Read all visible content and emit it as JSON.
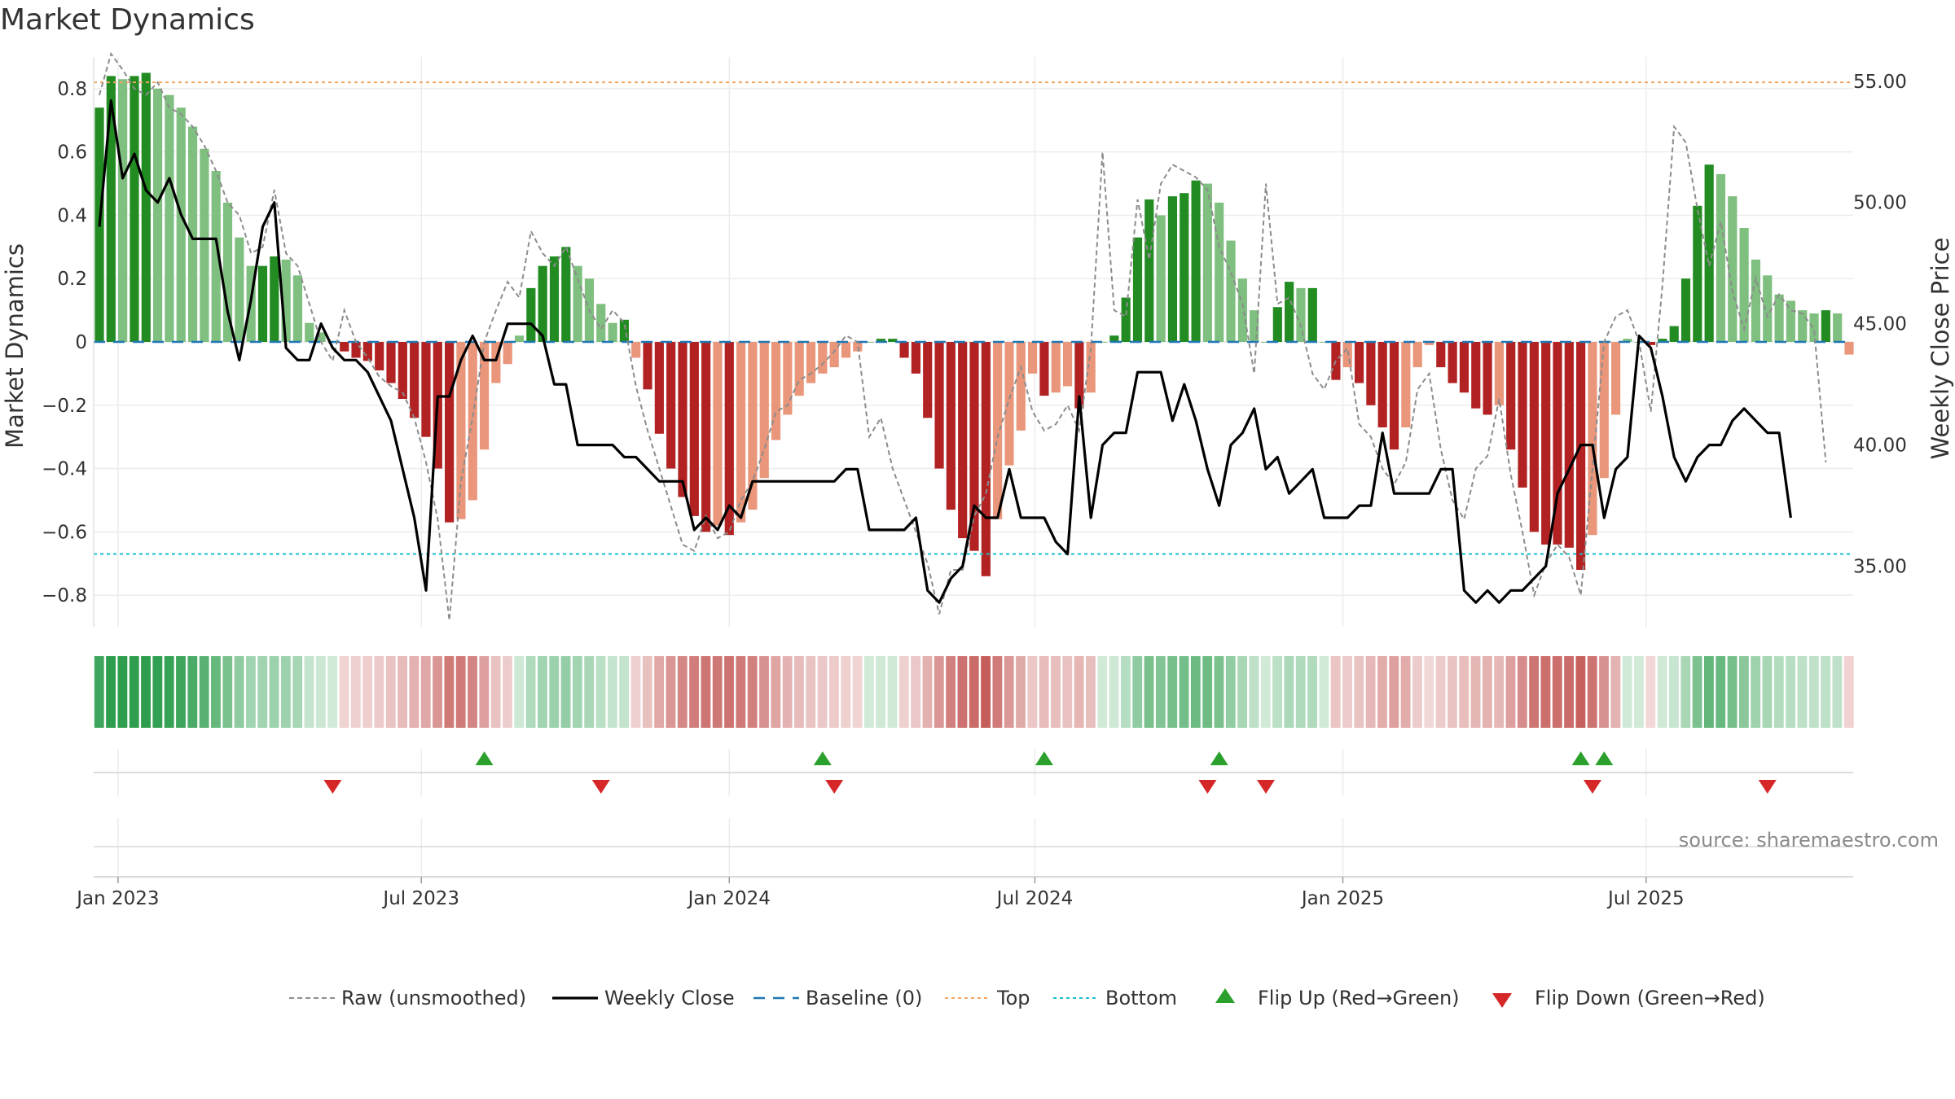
{
  "title": "Market Dynamics",
  "source": "source: sharemaestro.com",
  "colors": {
    "green_strong": "#228b22",
    "green_light": "#7fbf7f",
    "red_strong": "#b22222",
    "red_light": "#e9967a",
    "raw_line": "#8c8c8c",
    "close_line": "#000000",
    "baseline": "#1f77b4",
    "top_line": "#f4a460",
    "bottom_line": "#17becf",
    "flip_up": "#2ca02c",
    "flip_down": "#d62728",
    "grid": "#ececec"
  },
  "chart_data": {
    "type": "bar+line",
    "title": "Market Dynamics",
    "ylabel_left": "Market Dynamics",
    "ylabel_right": "Weekly Close Price",
    "ylim_left": [
      -0.9,
      0.9
    ],
    "ylim_right": [
      32.5,
      56
    ],
    "yticks_left": [
      {
        "v": 0.8,
        "label": "0.8"
      },
      {
        "v": 0.6,
        "label": "0.6"
      },
      {
        "v": 0.4,
        "label": "0.4"
      },
      {
        "v": 0.2,
        "label": "0.2"
      },
      {
        "v": 0,
        "label": "0"
      },
      {
        "v": -0.2,
        "label": "−0.2"
      },
      {
        "v": -0.4,
        "label": "−0.4"
      },
      {
        "v": -0.6,
        "label": "−0.6"
      },
      {
        "v": -0.8,
        "label": "−0.8"
      }
    ],
    "yticks_right": [
      {
        "v": 55,
        "label": "55.00"
      },
      {
        "v": 50,
        "label": "50.00"
      },
      {
        "v": 45,
        "label": "45.00"
      },
      {
        "v": 40,
        "label": "40.00"
      },
      {
        "v": 35,
        "label": "35.00"
      }
    ],
    "xticks": [
      {
        "week": 1.6,
        "label": "Jan 2023"
      },
      {
        "week": 27.6,
        "label": "Jul 2023"
      },
      {
        "week": 54.0,
        "label": "Jan 2024"
      },
      {
        "week": 80.2,
        "label": "Jul 2024"
      },
      {
        "week": 106.6,
        "label": "Jan 2025"
      },
      {
        "week": 132.6,
        "label": "Jul 2025"
      }
    ],
    "top_threshold": 0.82,
    "bottom_threshold": -0.67,
    "baseline": 0,
    "histogram_values": [
      0.74,
      0.84,
      0.83,
      0.84,
      0.85,
      0.8,
      0.78,
      0.74,
      0.68,
      0.61,
      0.54,
      0.44,
      0.33,
      0.24,
      0.24,
      0.27,
      0.26,
      0.21,
      0.06,
      0.03,
      0.0,
      -0.03,
      -0.05,
      -0.06,
      -0.09,
      -0.13,
      -0.18,
      -0.24,
      -0.3,
      -0.4,
      -0.57,
      -0.56,
      -0.5,
      -0.34,
      -0.13,
      -0.07,
      0.02,
      0.17,
      0.24,
      0.27,
      0.3,
      0.24,
      0.2,
      0.12,
      0.06,
      0.07,
      -0.05,
      -0.15,
      -0.29,
      -0.4,
      -0.49,
      -0.55,
      -0.6,
      -0.58,
      -0.61,
      -0.57,
      -0.53,
      -0.43,
      -0.31,
      -0.23,
      -0.17,
      -0.13,
      -0.1,
      -0.08,
      -0.05,
      -0.03,
      0.0,
      0.01,
      0.01,
      -0.05,
      -0.1,
      -0.24,
      -0.4,
      -0.53,
      -0.62,
      -0.66,
      -0.74,
      -0.56,
      -0.39,
      -0.28,
      -0.1,
      -0.17,
      -0.16,
      -0.14,
      -0.21,
      -0.16,
      0.0,
      0.02,
      0.14,
      0.33,
      0.45,
      0.4,
      0.46,
      0.47,
      0.51,
      0.5,
      0.44,
      0.32,
      0.2,
      0.1,
      0.0,
      0.11,
      0.19,
      0.17,
      0.17,
      0.0,
      -0.12,
      -0.08,
      -0.13,
      -0.2,
      -0.27,
      -0.34,
      -0.27,
      -0.08,
      -0.01,
      -0.08,
      -0.13,
      -0.16,
      -0.21,
      -0.23,
      -0.2,
      -0.34,
      -0.46,
      -0.6,
      -0.64,
      -0.64,
      -0.65,
      -0.72,
      -0.61,
      -0.43,
      -0.23,
      0.01,
      0.0,
      -0.01,
      0.01,
      0.05,
      0.2,
      0.43,
      0.56,
      0.53,
      0.46,
      0.36,
      0.26,
      0.21,
      0.15,
      0.13,
      0.1,
      0.09,
      0.1,
      0.09,
      -0.04
    ],
    "raw_values": [
      0.78,
      0.91,
      0.86,
      0.8,
      0.78,
      0.82,
      0.74,
      0.72,
      0.68,
      0.62,
      0.54,
      0.44,
      0.4,
      0.28,
      0.3,
      0.48,
      0.28,
      0.24,
      0.12,
      0.0,
      -0.06,
      0.1,
      0.0,
      -0.05,
      -0.11,
      -0.14,
      -0.16,
      -0.24,
      -0.38,
      -0.56,
      -0.88,
      -0.44,
      -0.24,
      0.0,
      0.1,
      0.19,
      0.14,
      0.35,
      0.28,
      0.24,
      0.3,
      0.2,
      0.1,
      0.04,
      0.1,
      0.06,
      -0.14,
      -0.28,
      -0.4,
      -0.52,
      -0.64,
      -0.66,
      -0.55,
      -0.62,
      -0.6,
      -0.5,
      -0.44,
      -0.34,
      -0.22,
      -0.2,
      -0.12,
      -0.1,
      -0.07,
      -0.03,
      0.02,
      0.0,
      -0.3,
      -0.24,
      -0.4,
      -0.5,
      -0.6,
      -0.7,
      -0.86,
      -0.72,
      -0.72,
      -0.55,
      -0.48,
      -0.3,
      -0.18,
      -0.08,
      -0.22,
      -0.28,
      -0.26,
      -0.2,
      -0.28,
      -0.02,
      0.6,
      0.1,
      0.08,
      0.45,
      0.26,
      0.5,
      0.56,
      0.54,
      0.52,
      0.48,
      0.3,
      0.22,
      0.12,
      -0.1,
      0.5,
      0.12,
      0.14,
      0.05,
      -0.1,
      -0.15,
      -0.06,
      -0.02,
      -0.26,
      -0.3,
      -0.4,
      -0.45,
      -0.38,
      -0.15,
      -0.1,
      -0.34,
      -0.5,
      -0.56,
      -0.4,
      -0.36,
      -0.18,
      -0.42,
      -0.6,
      -0.8,
      -0.7,
      -0.64,
      -0.68,
      -0.8,
      -0.4,
      0.0,
      0.08,
      0.1,
      0.0,
      -0.22,
      0.18,
      0.68,
      0.63,
      0.42,
      0.24,
      0.38,
      0.16,
      0.04,
      0.2,
      0.08,
      0.15,
      0.1,
      0.09,
      0.04,
      -0.38
    ],
    "close_values": [
      49.0,
      54.2,
      51.0,
      52.0,
      50.5,
      50.0,
      51.0,
      49.5,
      48.5,
      48.5,
      48.5,
      45.5,
      43.5,
      46.0,
      49.0,
      50.0,
      44.0,
      43.5,
      43.5,
      45.0,
      44.0,
      43.5,
      43.5,
      43.0,
      42.0,
      41.0,
      39.0,
      37.0,
      34.0,
      42.0,
      42.0,
      43.5,
      44.5,
      43.5,
      43.5,
      45.0,
      45.0,
      45.0,
      44.5,
      42.5,
      42.5,
      40.0,
      40.0,
      40.0,
      40.0,
      39.5,
      39.5,
      39.0,
      38.5,
      38.5,
      38.5,
      36.5,
      37.0,
      36.5,
      37.5,
      37.0,
      38.5,
      38.5,
      38.5,
      38.5,
      38.5,
      38.5,
      38.5,
      38.5,
      39.0,
      39.0,
      36.5,
      36.5,
      36.5,
      36.5,
      37.0,
      34.0,
      33.5,
      34.5,
      35.0,
      37.5,
      37.0,
      37.0,
      39.0,
      37.0,
      37.0,
      37.0,
      36.0,
      35.5,
      42.0,
      37.0,
      40.0,
      40.5,
      40.5,
      43.0,
      43.0,
      43.0,
      41.0,
      42.5,
      41.0,
      39.0,
      37.5,
      40.0,
      40.5,
      41.5,
      39.0,
      39.5,
      38.0,
      38.5,
      39.0,
      37.0,
      37.0,
      37.0,
      37.5,
      37.5,
      40.5,
      38.0,
      38.0,
      38.0,
      38.0,
      39.0,
      39.0,
      34.0,
      33.5,
      34.0,
      33.5,
      34.0,
      34.0,
      34.5,
      35.0,
      38.0,
      39.0,
      40.0,
      40.0,
      37.0,
      39.0,
      39.5,
      44.5,
      44.0,
      42.0,
      39.5,
      38.5,
      39.5,
      40.0,
      40.0,
      41.0,
      41.5,
      41.0,
      40.5,
      40.5,
      37.0
    ],
    "flip_up_weeks": [
      33,
      62,
      81,
      96,
      127,
      129
    ],
    "flip_down_weeks": [
      20,
      43,
      63,
      95,
      100,
      128,
      143
    ]
  },
  "legend": [
    {
      "label": "Raw (unsmoothed)",
      "kind": "dash-gray"
    },
    {
      "label": "Weekly Close",
      "kind": "solid-black"
    },
    {
      "label": "Baseline (0)",
      "kind": "dash-blue"
    },
    {
      "label": "Top",
      "kind": "dot-orange"
    },
    {
      "label": "Bottom",
      "kind": "dot-cyan"
    },
    {
      "label": "Flip Up (Red→Green)",
      "kind": "tri-up"
    },
    {
      "label": "Flip Down (Green→Red)",
      "kind": "tri-down"
    }
  ]
}
